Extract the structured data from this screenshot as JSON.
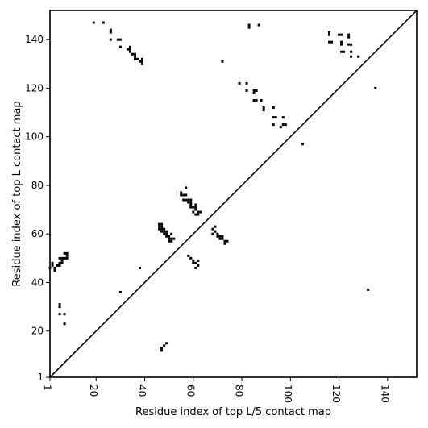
{
  "chart_data": {
    "type": "scatter",
    "title": "",
    "xlabel": "Residue index of top L/5 contact map",
    "ylabel": "Residue index of top L contact map",
    "xlim": [
      1,
      152
    ],
    "ylim": [
      1,
      152
    ],
    "x_ticks": [
      1,
      20,
      40,
      60,
      80,
      100,
      120,
      140
    ],
    "y_ticks": [
      1,
      20,
      40,
      60,
      80,
      100,
      120,
      140
    ],
    "grid": false,
    "diagonal": true,
    "marker": "square",
    "color": "#000000",
    "series": [
      {
        "values": [
          [
            19,
            147
          ],
          [
            23,
            147
          ],
          [
            26,
            143
          ],
          [
            26,
            144
          ],
          [
            26,
            140
          ],
          [
            29,
            140
          ],
          [
            30,
            140
          ],
          [
            30,
            137
          ],
          [
            33,
            136
          ],
          [
            34,
            137
          ],
          [
            34,
            136
          ],
          [
            34,
            135
          ],
          [
            35,
            134
          ],
          [
            36,
            134
          ],
          [
            36,
            133
          ],
          [
            36,
            132
          ],
          [
            37,
            132
          ],
          [
            38,
            131
          ],
          [
            39,
            131
          ],
          [
            39,
            130
          ],
          [
            39,
            132
          ],
          [
            72,
            131
          ],
          [
            79,
            122
          ],
          [
            82,
            122
          ],
          [
            82,
            119
          ],
          [
            83,
            146
          ],
          [
            83,
            145
          ],
          [
            87,
            146
          ],
          [
            85,
            119
          ],
          [
            86,
            119
          ],
          [
            85,
            118
          ],
          [
            85,
            115
          ],
          [
            86,
            115
          ],
          [
            88,
            115
          ],
          [
            89,
            112
          ],
          [
            89,
            111
          ],
          [
            93,
            112
          ],
          [
            93,
            108
          ],
          [
            94,
            108
          ],
          [
            93,
            105
          ],
          [
            97,
            108
          ],
          [
            97,
            105
          ],
          [
            96,
            104
          ],
          [
            98,
            105
          ],
          [
            105,
            97
          ],
          [
            116,
            143
          ],
          [
            116,
            142
          ],
          [
            116,
            139
          ],
          [
            117,
            139
          ],
          [
            120,
            142
          ],
          [
            121,
            142
          ],
          [
            121,
            139
          ],
          [
            121,
            138
          ],
          [
            121,
            135
          ],
          [
            122,
            135
          ],
          [
            124,
            142
          ],
          [
            124,
            141
          ],
          [
            124,
            138
          ],
          [
            125,
            138
          ],
          [
            125,
            135
          ],
          [
            125,
            133
          ],
          [
            128,
            133
          ],
          [
            135,
            120
          ],
          [
            132,
            37
          ],
          [
            1,
            46
          ],
          [
            2,
            47
          ],
          [
            2,
            48
          ],
          [
            3,
            46
          ],
          [
            3,
            45
          ],
          [
            4,
            47
          ],
          [
            5,
            47
          ],
          [
            5,
            48
          ],
          [
            5,
            50
          ],
          [
            6,
            48
          ],
          [
            6,
            49
          ],
          [
            6,
            50
          ],
          [
            7,
            50
          ],
          [
            8,
            50
          ],
          [
            8,
            51
          ],
          [
            8,
            52
          ],
          [
            7,
            52
          ],
          [
            5,
            31
          ],
          [
            5,
            30
          ],
          [
            5,
            27
          ],
          [
            7,
            27
          ],
          [
            7,
            23
          ],
          [
            38,
            46
          ],
          [
            30,
            36
          ],
          [
            46,
            64
          ],
          [
            46,
            62
          ],
          [
            46,
            63
          ],
          [
            47,
            64
          ],
          [
            47,
            63
          ],
          [
            47,
            62
          ],
          [
            47,
            61
          ],
          [
            48,
            62
          ],
          [
            48,
            61
          ],
          [
            49,
            61
          ],
          [
            49,
            60
          ],
          [
            49,
            59
          ],
          [
            48,
            60
          ],
          [
            50,
            59
          ],
          [
            50,
            58
          ],
          [
            50,
            57
          ],
          [
            51,
            60
          ],
          [
            51,
            58
          ],
          [
            51,
            57
          ],
          [
            52,
            58
          ],
          [
            47,
            13
          ],
          [
            47,
            12
          ],
          [
            48,
            14
          ],
          [
            49,
            15
          ],
          [
            55,
            77
          ],
          [
            55,
            76
          ],
          [
            56,
            76
          ],
          [
            56,
            74
          ],
          [
            57,
            79
          ],
          [
            57,
            76
          ],
          [
            57,
            74
          ],
          [
            58,
            74
          ],
          [
            58,
            73
          ],
          [
            59,
            74
          ],
          [
            59,
            73
          ],
          [
            59,
            72
          ],
          [
            59,
            71
          ],
          [
            60,
            71
          ],
          [
            61,
            72
          ],
          [
            61,
            71
          ],
          [
            61,
            70
          ],
          [
            60,
            69
          ],
          [
            61,
            68
          ],
          [
            62,
            69
          ],
          [
            62,
            68
          ],
          [
            63,
            69
          ],
          [
            58,
            51
          ],
          [
            59,
            50
          ],
          [
            60,
            49
          ],
          [
            60,
            48
          ],
          [
            61,
            48
          ],
          [
            61,
            46
          ],
          [
            62,
            49
          ],
          [
            62,
            47
          ],
          [
            68,
            62
          ],
          [
            68,
            60
          ],
          [
            69,
            63
          ],
          [
            69,
            61
          ],
          [
            70,
            60
          ],
          [
            70,
            59
          ],
          [
            71,
            59
          ],
          [
            71,
            58
          ],
          [
            72,
            59
          ],
          [
            72,
            58
          ],
          [
            73,
            57
          ],
          [
            73,
            56
          ],
          [
            74,
            57
          ]
        ]
      }
    ]
  }
}
